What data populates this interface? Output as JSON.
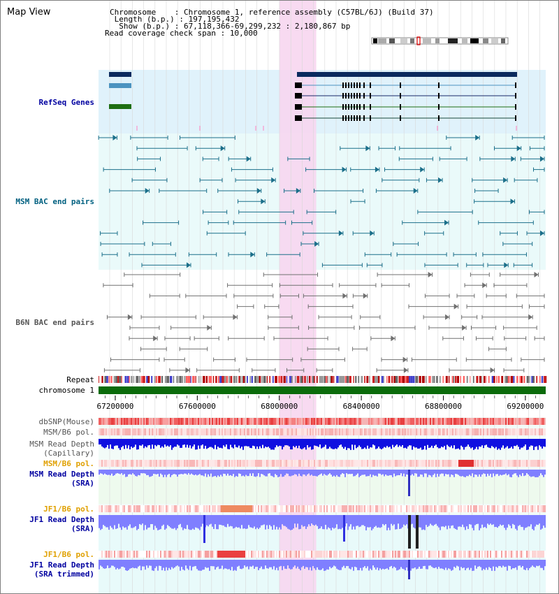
{
  "page": {
    "title": "Map View"
  },
  "info": {
    "chromosome_label": "Chromosome",
    "chromosome_value": "Chromosome 1, reference assembly (C57BL/6J) (Build 37)",
    "length_label": "Length (b.p.)",
    "length_value": "197,195,432",
    "show_label": "Show (b.p.)",
    "show_value": "67,118,366-69,299,232 : 2,180,867 bp",
    "coverage_label": "Read coverage check span",
    "coverage_value": "10,000"
  },
  "tracks": {
    "refseq": "RefSeq Genes",
    "msm_bac": "MSM BAC end pairs",
    "b6n_bac": "B6N BAC end pairs",
    "repeat": "Repeat",
    "chromosome": "chromosome 1",
    "dbsnp": "dbSNP(Mouse)",
    "msm_b6_pol_1": "MSM/B6 pol.",
    "msm_read_depth_cap_1": "MSM Read Depth",
    "msm_read_depth_cap_2": "(Capillary)",
    "msm_b6_pol_2": "MSM/B6 pol.",
    "msm_read_depth_sra_1": "MSM Read Depth",
    "msm_read_depth_sra_2": "(SRA)",
    "jf1_b6_pol_1": "JF1/B6 pol.",
    "jf1_read_depth_sra_1": "JF1 Read Depth",
    "jf1_read_depth_sra_2": "(SRA)",
    "jf1_b6_pol_2": "JF1/B6 pol.",
    "jf1_read_depth_trim_1": "JF1 Read Depth",
    "jf1_read_depth_trim_2": "(SRA trimmed)"
  },
  "axis": {
    "start": 67118366,
    "end": 69299232,
    "ticks": [
      67200000,
      67600000,
      68000000,
      68400000,
      68800000,
      69200000
    ],
    "tick_labels": [
      "67200000",
      "67600000",
      "68000000",
      "68400000",
      "68800000",
      "69200000"
    ],
    "highlight_start": 68000000,
    "highlight_end": 68180000
  },
  "colors": {
    "refseq_bg": "#e0f2fb",
    "bac_bg": "#eafafa",
    "highlight": "#f7d6f0",
    "refseq_dark": "#0a2a5e",
    "refseq_light": "#4c93c0",
    "refseq_green": "#1e6e12",
    "msm_bac": "#1b6f8a",
    "b6n_bac": "#707070",
    "chromosome": "#0b6b0b",
    "read_depth_cap": "#1010e0",
    "read_depth_sra": "#7f7fff",
    "pol_orange": "#e0a000",
    "label_blue": "#0000a0",
    "label_teal": "#006080",
    "label_gray": "#555555"
  }
}
